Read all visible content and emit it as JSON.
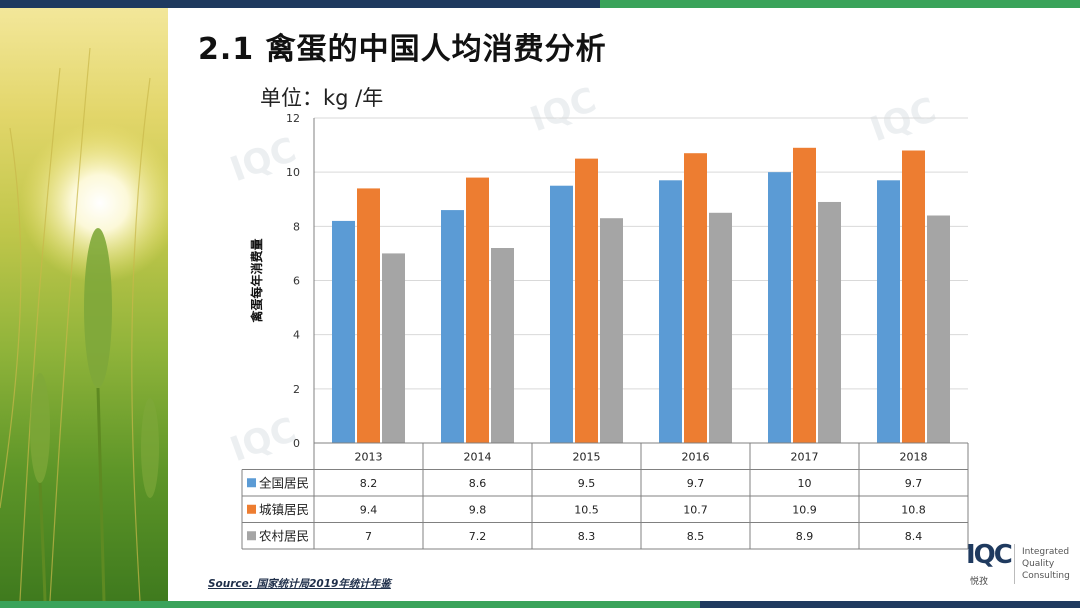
{
  "slide": {
    "title": "2.1 禽蛋的中国人均消费分析",
    "unit": "单位：kg /年",
    "source": "Source: 国家统计局2019年统计年鉴"
  },
  "logo": {
    "mark": "IQC",
    "cn": "悦孜",
    "lines": [
      "Integrated",
      "Quality",
      "Consulting"
    ]
  },
  "colors": {
    "series": [
      "#5b9bd5",
      "#ed7d31",
      "#a5a5a5"
    ],
    "grid": "#d9d9d9",
    "axis": "#808080"
  },
  "chart_data": {
    "type": "bar",
    "title": "",
    "xlabel": "",
    "ylabel": "禽蛋每年消费量",
    "ylim": [
      0,
      12
    ],
    "yticks": [
      0,
      2,
      4,
      6,
      8,
      10,
      12
    ],
    "grid": true,
    "legend": "data-table",
    "categories": [
      "2013",
      "2014",
      "2015",
      "2016",
      "2017",
      "2018"
    ],
    "series": [
      {
        "name": "全国居民",
        "values": [
          8.2,
          8.6,
          9.5,
          9.7,
          10,
          9.7
        ],
        "labels": [
          "8.2",
          "8.6",
          "9.5",
          "9.7",
          "10",
          "9.7"
        ]
      },
      {
        "name": "城镇居民",
        "values": [
          9.4,
          9.8,
          10.5,
          10.7,
          10.9,
          10.8
        ],
        "labels": [
          "9.4",
          "9.8",
          "10.5",
          "10.7",
          "10.9",
          "10.8"
        ]
      },
      {
        "name": "农村居民",
        "values": [
          7,
          7.2,
          8.3,
          8.5,
          8.9,
          8.4
        ],
        "labels": [
          "7",
          "7.2",
          "8.3",
          "8.5",
          "8.9",
          "8.4"
        ]
      }
    ]
  }
}
